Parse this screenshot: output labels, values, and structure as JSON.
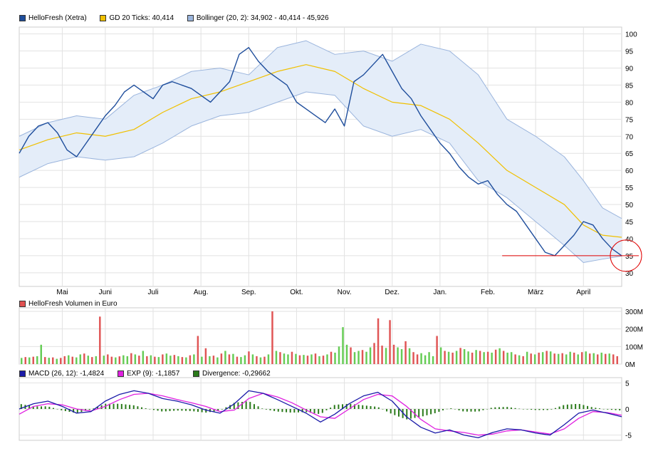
{
  "price_chart": {
    "legend": [
      {
        "label": "HelloFresh (Xetra)",
        "color": "#1f4e9c"
      },
      {
        "label": "GD 20 Ticks: 40,414",
        "color": "#f0c000"
      },
      {
        "label": "Bollinger (20, 2): 34,902 - 40,414 - 45,926",
        "color": "#9bb5dd"
      }
    ]
  },
  "volume_chart": {
    "legend": [
      {
        "label": "HelloFresh Volumen in Euro",
        "color": "#e05050"
      }
    ]
  },
  "macd_chart": {
    "legend": [
      {
        "label": "MACD (26, 12): -1,4824",
        "color": "#1a1aa8"
      },
      {
        "label": "EXP (9): -1,1857",
        "color": "#e020e0"
      },
      {
        "label": "Divergence: -0,29662",
        "color": "#2a7a1a"
      }
    ]
  },
  "colors": {
    "price": "#1f4e9c",
    "ma": "#f0c000",
    "band_fill": "#e4edf9",
    "band_line": "#9bb5dd",
    "vol_up": "#66cc55",
    "vol_down": "#e05555",
    "macd": "#1a1aa8",
    "signal": "#e020e0",
    "div": "#2a7a1a",
    "support_line": "#e00000",
    "grid": "#e2e2e2"
  },
  "chart_data": [
    {
      "type": "line",
      "title": "HelloFresh (Xetra)",
      "ylim": [
        26,
        102
      ],
      "y_ticks": [
        "100",
        "95",
        "90",
        "85",
        "80",
        "75",
        "70",
        "65",
        "60",
        "55",
        "50",
        "45",
        "40",
        "35",
        "30"
      ],
      "y_tick_values": [
        100,
        95,
        90,
        85,
        80,
        75,
        70,
        65,
        60,
        55,
        50,
        45,
        40,
        35,
        30
      ],
      "x_ticks": [
        "Mai",
        "Juni",
        "Juli",
        "Aug.",
        "Sep.",
        "Okt.",
        "Nov.",
        "Dez.",
        "Jan.",
        "Feb.",
        "März",
        "April"
      ],
      "x_tick_positions": [
        0.9,
        1.8,
        2.8,
        3.8,
        4.8,
        5.8,
        6.8,
        7.8,
        8.8,
        9.8,
        10.8,
        11.8
      ],
      "x_range": [
        0,
        12.6
      ],
      "series": [
        {
          "name": "HelloFresh (Xetra)",
          "x": [
            0,
            0.2,
            0.4,
            0.6,
            0.8,
            1.0,
            1.2,
            1.4,
            1.6,
            1.8,
            2.0,
            2.2,
            2.4,
            2.6,
            2.8,
            3.0,
            3.2,
            3.4,
            3.6,
            3.8,
            4.0,
            4.2,
            4.4,
            4.6,
            4.8,
            5.0,
            5.2,
            5.4,
            5.6,
            5.8,
            6.0,
            6.2,
            6.4,
            6.6,
            6.8,
            7.0,
            7.2,
            7.4,
            7.6,
            7.8,
            8.0,
            8.2,
            8.4,
            8.6,
            8.8,
            9.0,
            9.2,
            9.4,
            9.6,
            9.8,
            10.0,
            10.2,
            10.4,
            10.6,
            10.8,
            11.0,
            11.2,
            11.4,
            11.6,
            11.8,
            12.0,
            12.2,
            12.4,
            12.6
          ],
          "values": [
            65,
            70,
            73,
            74,
            71,
            66,
            64,
            68,
            72,
            76,
            79,
            83,
            85,
            83,
            81,
            85,
            86,
            85,
            84,
            82,
            80,
            83,
            86,
            94,
            96,
            92,
            89,
            87,
            85,
            80,
            78,
            76,
            74,
            78,
            73,
            86,
            88,
            91,
            94,
            89,
            84,
            81,
            76,
            72,
            68,
            65,
            61,
            58,
            56,
            57,
            53,
            50,
            48,
            44,
            40,
            36,
            35,
            38,
            41,
            45,
            44,
            40,
            37,
            35
          ]
        },
        {
          "name": "GD 20 Ticks",
          "x": [
            0,
            0.6,
            1.2,
            1.8,
            2.4,
            3.0,
            3.6,
            4.2,
            4.8,
            5.4,
            6.0,
            6.6,
            7.2,
            7.8,
            8.4,
            9.0,
            9.6,
            10.2,
            10.8,
            11.4,
            11.8,
            12.2,
            12.6
          ],
          "values": [
            66,
            69,
            71,
            70,
            72,
            77,
            81,
            83,
            86,
            89,
            91,
            89,
            84,
            80,
            79,
            75,
            68,
            60,
            55,
            50,
            44,
            41,
            40.4
          ]
        },
        {
          "name": "Bollinger upper",
          "x": [
            0,
            0.6,
            1.2,
            1.8,
            2.4,
            3.0,
            3.6,
            4.2,
            4.8,
            5.4,
            6.0,
            6.6,
            7.2,
            7.8,
            8.4,
            9.0,
            9.6,
            10.2,
            10.8,
            11.4,
            11.8,
            12.2,
            12.6
          ],
          "values": [
            70,
            74,
            76,
            75,
            82,
            85,
            89,
            90,
            88,
            96,
            98,
            94,
            95,
            92,
            97,
            95,
            88,
            75,
            70,
            64,
            57,
            49,
            45.9
          ]
        },
        {
          "name": "Bollinger lower",
          "x": [
            0,
            0.6,
            1.2,
            1.8,
            2.4,
            3.0,
            3.6,
            4.2,
            4.8,
            5.4,
            6.0,
            6.6,
            7.2,
            7.8,
            8.4,
            9.0,
            9.6,
            10.2,
            10.8,
            11.4,
            11.8,
            12.2,
            12.6
          ],
          "values": [
            58,
            62,
            64,
            63,
            64,
            68,
            73,
            76,
            77,
            80,
            83,
            82,
            73,
            70,
            72,
            68,
            57,
            52,
            45,
            38,
            33,
            34,
            34.9
          ]
        }
      ],
      "annotations": [
        {
          "type": "horizontal_line",
          "value": 35
        },
        {
          "type": "circle",
          "x": 12.6,
          "y": 35
        }
      ]
    },
    {
      "type": "bar",
      "title": "HelloFresh Volumen in Euro",
      "ylim": [
        0,
        320
      ],
      "y_ticks": [
        "300M",
        "200M",
        "100M",
        "0M"
      ],
      "y_tick_values": [
        300,
        200,
        100,
        0
      ],
      "values": [
        35,
        40,
        38,
        42,
        45,
        110,
        40,
        36,
        38,
        30,
        35,
        45,
        50,
        42,
        38,
        55,
        60,
        48,
        40,
        45,
        270,
        48,
        55,
        42,
        38,
        44,
        50,
        45,
        62,
        55,
        48,
        75,
        45,
        50,
        42,
        40,
        55,
        60,
        48,
        52,
        45,
        40,
        38,
        50,
        55,
        160,
        42,
        90,
        45,
        48,
        38,
        60,
        75,
        55,
        58,
        42,
        40,
        50,
        72,
        55,
        45,
        38,
        42,
        55,
        300,
        75,
        68,
        60,
        55,
        70,
        58,
        50,
        52,
        48,
        55,
        60,
        45,
        48,
        55,
        70,
        65,
        100,
        210,
        110,
        95,
        68,
        75,
        80,
        70,
        95,
        120,
        260,
        105,
        92,
        250,
        110,
        95,
        85,
        130,
        90,
        68,
        55,
        62,
        50,
        68,
        45,
        160,
        95,
        75,
        70,
        65,
        75,
        92,
        85,
        72,
        65,
        80,
        75,
        68,
        70,
        65,
        82,
        90,
        75,
        65,
        68,
        55,
        50,
        45,
        70,
        60,
        55,
        65,
        68,
        75,
        72,
        60,
        58,
        62,
        55,
        70,
        65,
        55,
        68,
        72,
        60,
        62,
        55,
        65,
        58,
        60,
        55,
        45
      ],
      "directions": [
        "u",
        "d",
        "u",
        "d",
        "u",
        "u",
        "d",
        "u",
        "d",
        "u",
        "d",
        "d",
        "u",
        "d",
        "u",
        "u",
        "d",
        "u",
        "d",
        "u",
        "d",
        "u",
        "d",
        "d",
        "u",
        "d",
        "u",
        "u",
        "d",
        "u",
        "d",
        "u",
        "d",
        "u",
        "d",
        "u",
        "d",
        "u",
        "u",
        "d",
        "u",
        "d",
        "u",
        "d",
        "u",
        "d",
        "u",
        "d",
        "u",
        "d",
        "u",
        "d",
        "u",
        "d",
        "u",
        "d",
        "u",
        "u",
        "d",
        "u",
        "d",
        "u",
        "d",
        "u",
        "d",
        "u",
        "d",
        "u",
        "u",
        "d",
        "u",
        "d",
        "u",
        "d",
        "u",
        "d",
        "u",
        "d",
        "u",
        "d",
        "u",
        "u",
        "u",
        "u",
        "d",
        "u",
        "u",
        "d",
        "u",
        "u",
        "d",
        "d",
        "d",
        "u",
        "d",
        "d",
        "u",
        "u",
        "d",
        "u",
        "d",
        "d",
        "u",
        "u",
        "u",
        "u",
        "d",
        "u",
        "d",
        "u",
        "d",
        "u",
        "d",
        "u",
        "u",
        "d",
        "u",
        "d",
        "u",
        "d",
        "u",
        "d",
        "u",
        "d",
        "u",
        "u",
        "d",
        "u",
        "d",
        "u",
        "d",
        "u",
        "d",
        "u",
        "d",
        "u",
        "d",
        "u",
        "d",
        "u",
        "u",
        "d",
        "u",
        "d",
        "u",
        "d",
        "u",
        "d",
        "u",
        "d",
        "u",
        "d",
        "d"
      ]
    },
    {
      "type": "line",
      "title": "MACD (26, 12)",
      "ylim": [
        -6,
        6
      ],
      "y_ticks": [
        "5",
        "0",
        "-5"
      ],
      "y_tick_values": [
        5,
        0,
        -5
      ],
      "x_range": [
        0,
        12.6
      ],
      "series": [
        {
          "name": "MACD",
          "x": [
            0,
            0.3,
            0.6,
            0.9,
            1.2,
            1.5,
            1.8,
            2.1,
            2.4,
            2.7,
            3.0,
            3.3,
            3.6,
            3.9,
            4.2,
            4.5,
            4.8,
            5.1,
            5.4,
            5.7,
            6.0,
            6.3,
            6.6,
            6.9,
            7.2,
            7.5,
            7.8,
            8.1,
            8.4,
            8.7,
            9.0,
            9.3,
            9.6,
            9.9,
            10.2,
            10.5,
            10.8,
            11.1,
            11.4,
            11.7,
            12.0,
            12.3,
            12.6
          ],
          "values": [
            0,
            1.0,
            1.5,
            0.5,
            -0.8,
            -0.5,
            1.5,
            2.8,
            3.5,
            3.0,
            2.0,
            1.5,
            0.8,
            -0.2,
            -0.8,
            1.0,
            3.5,
            3.0,
            1.8,
            0.5,
            -0.8,
            -2.5,
            -1.0,
            1.0,
            2.5,
            3.2,
            1.5,
            -1.5,
            -3.5,
            -4.6,
            -4.0,
            -5.0,
            -5.5,
            -4.5,
            -3.8,
            -4.0,
            -4.6,
            -5.0,
            -3.0,
            -0.8,
            -0.2,
            -0.8,
            -1.48
          ]
        },
        {
          "name": "EXP (9)",
          "x": [
            0,
            0.3,
            0.6,
            0.9,
            1.2,
            1.5,
            1.8,
            2.1,
            2.4,
            2.7,
            3.0,
            3.3,
            3.6,
            3.9,
            4.2,
            4.5,
            4.8,
            5.1,
            5.4,
            5.7,
            6.0,
            6.3,
            6.6,
            6.9,
            7.2,
            7.5,
            7.8,
            8.1,
            8.4,
            8.7,
            9.0,
            9.3,
            9.6,
            9.9,
            10.2,
            10.5,
            10.8,
            11.1,
            11.4,
            11.7,
            12.0,
            12.3,
            12.6
          ],
          "values": [
            -1.0,
            0.5,
            1.0,
            0.8,
            0,
            -0.4,
            0.5,
            1.8,
            2.8,
            3.0,
            2.5,
            1.8,
            1.2,
            0.5,
            -0.5,
            -0.2,
            2.0,
            3.0,
            2.3,
            1.2,
            -0.2,
            -1.5,
            -1.8,
            0,
            1.8,
            2.8,
            2.5,
            0.5,
            -2.0,
            -3.8,
            -4.2,
            -4.5,
            -5.0,
            -4.8,
            -4.2,
            -4.0,
            -4.4,
            -4.8,
            -3.8,
            -1.8,
            -0.5,
            -0.7,
            -1.19
          ]
        }
      ],
      "divergence": {
        "name": "Divergence",
        "values": [
          1.0,
          0.5,
          0.5,
          -0.3,
          -0.8,
          -0.1,
          1.0,
          1.0,
          0.7,
          0,
          -0.5,
          -0.3,
          -0.4,
          -0.7,
          -0.3,
          1.2,
          1.5,
          0,
          -0.5,
          -0.7,
          -0.6,
          -1.0,
          0.8,
          1.0,
          0.7,
          0.4,
          -1.0,
          -2.0,
          -1.5,
          -0.8,
          0.2,
          -0.5,
          -0.5,
          0.3,
          0.4,
          0,
          -0.2,
          -0.2,
          0.8,
          1.0,
          0.3,
          -0.1,
          -0.3
        ]
      }
    }
  ]
}
